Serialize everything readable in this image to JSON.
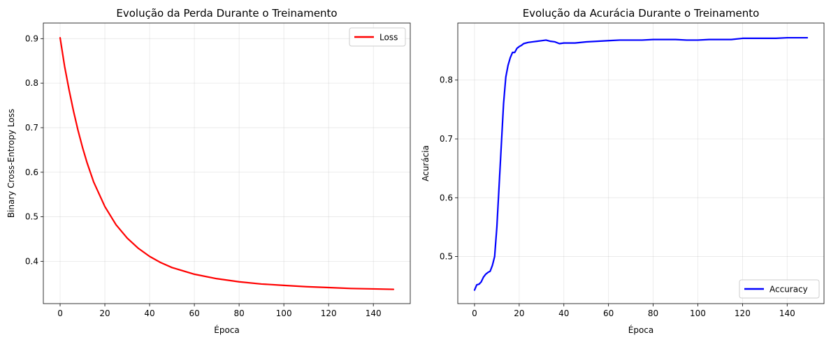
{
  "chart_data": [
    {
      "type": "line",
      "title": "Evolução da Perda Durante o Treinamento",
      "xlabel": "Época",
      "ylabel": "Binary Cross-Entropy Loss",
      "xlim": [
        -7.5,
        156.5
      ],
      "ylim": [
        0.305,
        0.935
      ],
      "xticks": [
        0,
        20,
        40,
        60,
        80,
        100,
        120,
        140
      ],
      "yticks": [
        0.4,
        0.5,
        0.6,
        0.7,
        0.8,
        0.9
      ],
      "grid": true,
      "legend_position": "upper right",
      "series": [
        {
          "name": "Loss",
          "color": "#ff0000",
          "x": [
            0,
            2,
            4,
            6,
            8,
            10,
            12,
            15,
            20,
            25,
            30,
            35,
            40,
            45,
            50,
            60,
            70,
            80,
            90,
            100,
            110,
            120,
            130,
            140,
            149
          ],
          "y": [
            0.902,
            0.838,
            0.785,
            0.737,
            0.694,
            0.656,
            0.622,
            0.578,
            0.523,
            0.482,
            0.452,
            0.429,
            0.411,
            0.397,
            0.386,
            0.371,
            0.361,
            0.354,
            0.349,
            0.346,
            0.343,
            0.341,
            0.339,
            0.338,
            0.337
          ]
        }
      ]
    },
    {
      "type": "line",
      "title": "Evolução da Acurácia Durante o Treinamento",
      "xlabel": "Época",
      "ylabel": "Acurácia",
      "xlim": [
        -7.5,
        156.5
      ],
      "ylim": [
        0.42,
        0.897
      ],
      "xticks": [
        0,
        20,
        40,
        60,
        80,
        100,
        120,
        140
      ],
      "yticks": [
        0.5,
        0.6,
        0.7,
        0.8
      ],
      "grid": true,
      "legend_position": "lower right",
      "series": [
        {
          "name": "Accuracy",
          "color": "#0000ff",
          "x": [
            0,
            1,
            2,
            3,
            4,
            5,
            6,
            7,
            8,
            9,
            10,
            11,
            12,
            13,
            14,
            15,
            16,
            17,
            18,
            19,
            20,
            21,
            22,
            24,
            26,
            28,
            30,
            32,
            34,
            36,
            38,
            40,
            45,
            50,
            55,
            60,
            65,
            70,
            75,
            80,
            85,
            90,
            95,
            100,
            105,
            110,
            115,
            120,
            125,
            130,
            135,
            140,
            145,
            149
          ],
          "y": [
            0.443,
            0.452,
            0.453,
            0.457,
            0.465,
            0.47,
            0.473,
            0.475,
            0.485,
            0.5,
            0.55,
            0.62,
            0.69,
            0.76,
            0.805,
            0.825,
            0.838,
            0.847,
            0.847,
            0.854,
            0.857,
            0.859,
            0.862,
            0.864,
            0.865,
            0.866,
            0.867,
            0.868,
            0.866,
            0.865,
            0.862,
            0.863,
            0.863,
            0.865,
            0.866,
            0.867,
            0.868,
            0.868,
            0.868,
            0.869,
            0.869,
            0.869,
            0.868,
            0.868,
            0.869,
            0.869,
            0.869,
            0.871,
            0.871,
            0.871,
            0.871,
            0.872,
            0.872,
            0.872
          ]
        }
      ]
    }
  ]
}
